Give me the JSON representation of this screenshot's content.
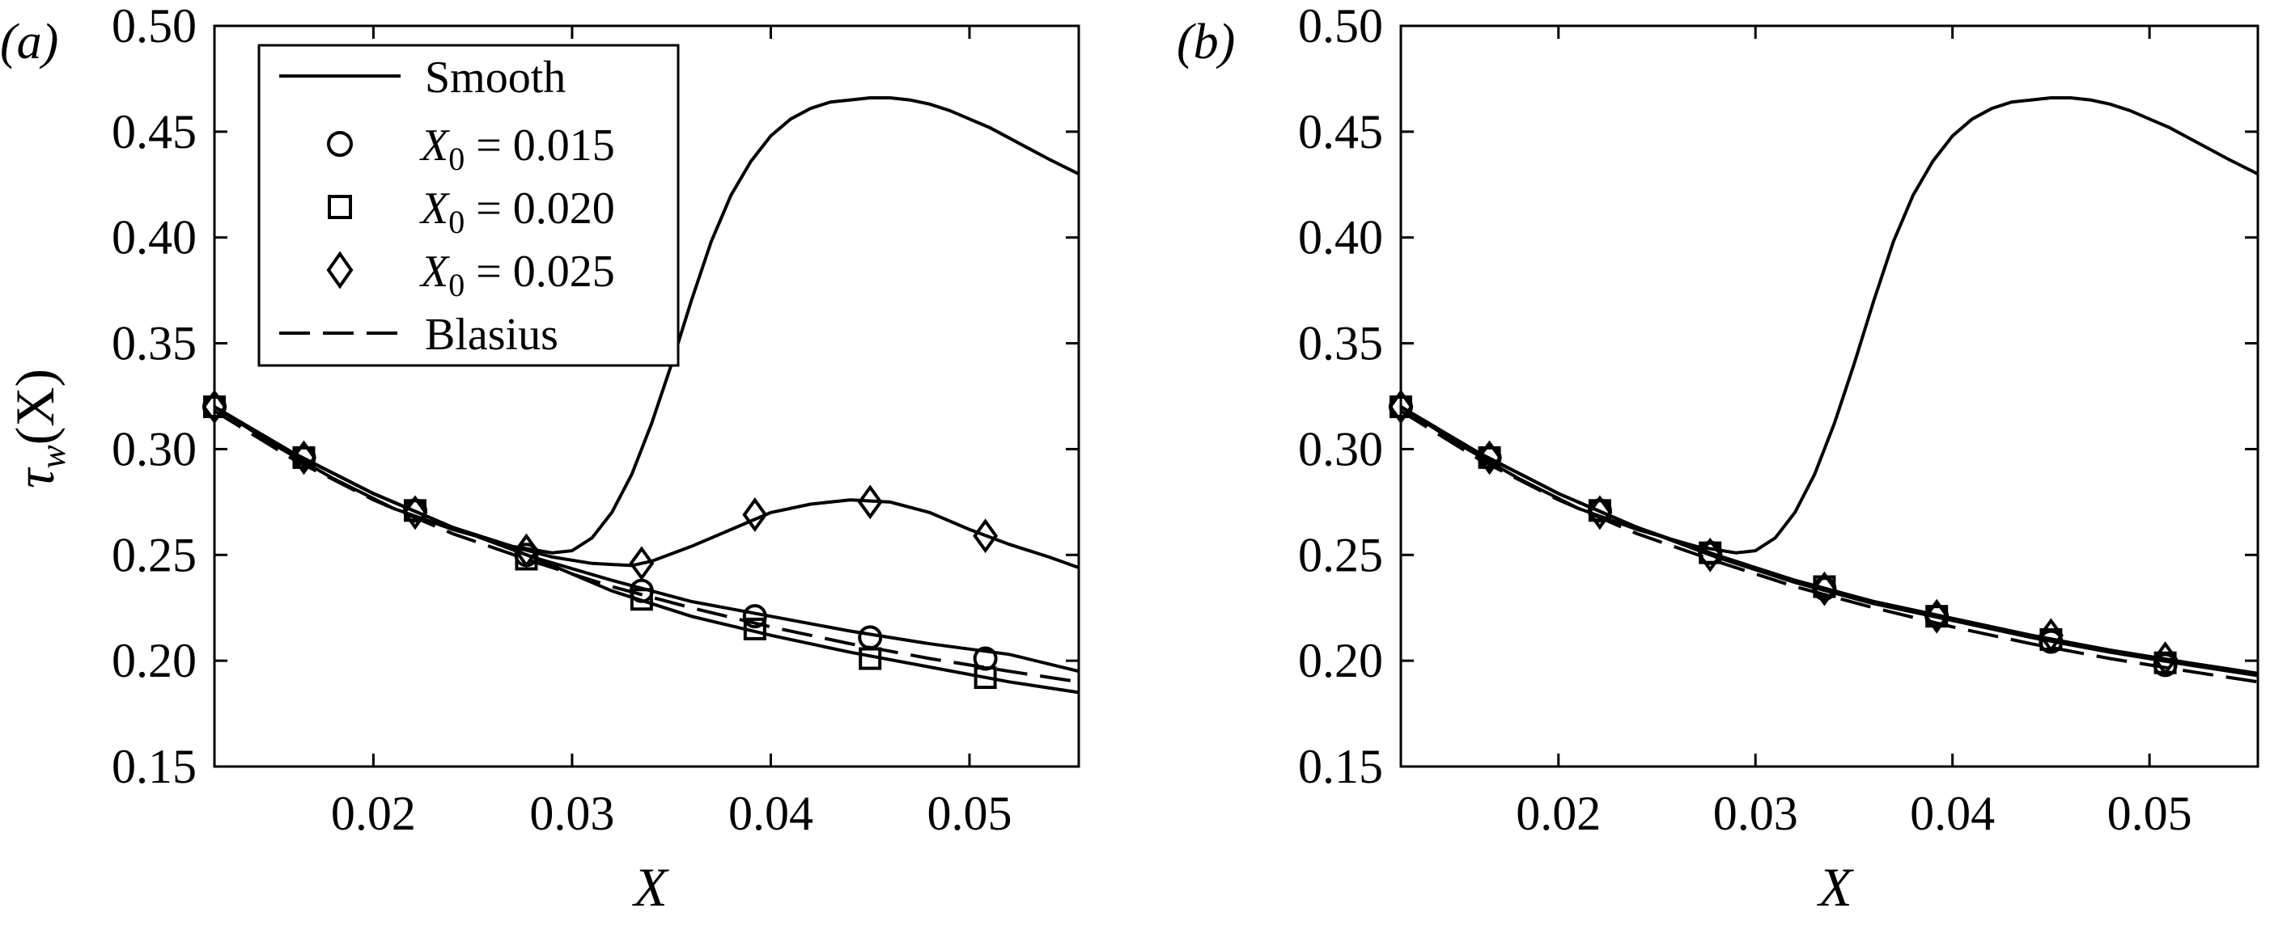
{
  "chart_data": [
    {
      "type": "line",
      "panel_label": "(a)",
      "xlabel": "X",
      "ylabel": "τ_w(X)",
      "ylabel_parts": {
        "main": "τ",
        "sub": "w",
        "arg": "(X)"
      },
      "xlim": [
        0.012,
        0.0555
      ],
      "ylim": [
        0.15,
        0.5
      ],
      "xticks": [
        0.02,
        0.03,
        0.04,
        0.05
      ],
      "xtick_labels": [
        "0.02",
        "0.03",
        "0.04",
        "0.05"
      ],
      "yticks": [
        0.15,
        0.2,
        0.25,
        0.3,
        0.35,
        0.4,
        0.45,
        0.5
      ],
      "ytick_labels": [
        "0.15",
        "0.20",
        "0.25",
        "0.30",
        "0.35",
        "0.40",
        "0.45",
        "0.50"
      ],
      "grid": false,
      "legend_position": "top-left",
      "legend": [
        {
          "label": "Smooth",
          "style": "solid"
        },
        {
          "label": "X",
          "sub": "0",
          "value": " = 0.015",
          "marker": "circle"
        },
        {
          "label": "X",
          "sub": "0",
          "value": " = 0.020",
          "marker": "square"
        },
        {
          "label": "X",
          "sub": "0",
          "value": " = 0.025",
          "marker": "diamond"
        },
        {
          "label": "Blasius",
          "style": "dashed"
        }
      ],
      "series": [
        {
          "name": "Smooth",
          "style": "solid",
          "x": [
            0.012,
            0.015,
            0.018,
            0.021,
            0.024,
            0.027,
            0.029,
            0.03,
            0.031,
            0.032,
            0.033,
            0.034,
            0.035,
            0.036,
            0.037,
            0.038,
            0.039,
            0.04,
            0.041,
            0.042,
            0.043,
            0.044,
            0.045,
            0.046,
            0.047,
            0.048,
            0.049,
            0.05,
            0.051,
            0.052,
            0.053,
            0.054,
            0.0555
          ],
          "y": [
            0.32,
            0.302,
            0.286,
            0.272,
            0.262,
            0.254,
            0.251,
            0.252,
            0.258,
            0.27,
            0.288,
            0.312,
            0.34,
            0.37,
            0.398,
            0.42,
            0.436,
            0.448,
            0.456,
            0.461,
            0.464,
            0.465,
            0.466,
            0.466,
            0.465,
            0.463,
            0.46,
            0.456,
            0.452,
            0.447,
            0.442,
            0.437,
            0.43
          ]
        },
        {
          "name": "X0 = 0.015",
          "style": "solid",
          "marker": "circle",
          "x": [
            0.012,
            0.016,
            0.02,
            0.024,
            0.028,
            0.032,
            0.036,
            0.04,
            0.044,
            0.048,
            0.052,
            0.0555
          ],
          "y": [
            0.32,
            0.298,
            0.279,
            0.263,
            0.249,
            0.238,
            0.228,
            0.221,
            0.214,
            0.208,
            0.203,
            0.195
          ]
        },
        {
          "name": "X0 = 0.020",
          "style": "solid",
          "marker": "square",
          "x": [
            0.012,
            0.016,
            0.02,
            0.024,
            0.028,
            0.032,
            0.036,
            0.04,
            0.044,
            0.048,
            0.052,
            0.0555
          ],
          "y": [
            0.32,
            0.298,
            0.279,
            0.263,
            0.249,
            0.233,
            0.221,
            0.212,
            0.204,
            0.197,
            0.19,
            0.185
          ]
        },
        {
          "name": "X0 = 0.025",
          "style": "solid",
          "marker": "diamond",
          "x": [
            0.012,
            0.016,
            0.02,
            0.024,
            0.027,
            0.029,
            0.031,
            0.033,
            0.034,
            0.036,
            0.038,
            0.04,
            0.042,
            0.044,
            0.046,
            0.048,
            0.05,
            0.052,
            0.054,
            0.0555
          ],
          "y": [
            0.32,
            0.298,
            0.279,
            0.263,
            0.254,
            0.249,
            0.246,
            0.245,
            0.247,
            0.254,
            0.262,
            0.27,
            0.274,
            0.276,
            0.275,
            0.27,
            0.262,
            0.255,
            0.249,
            0.244
          ]
        },
        {
          "name": "Blasius",
          "style": "dashed",
          "x": [
            0.012,
            0.016,
            0.02,
            0.024,
            0.028,
            0.032,
            0.036,
            0.04,
            0.044,
            0.048,
            0.052,
            0.0555
          ],
          "y": [
            0.318,
            0.295,
            0.276,
            0.26,
            0.247,
            0.235,
            0.225,
            0.216,
            0.208,
            0.201,
            0.195,
            0.19
          ]
        }
      ],
      "markers": [
        {
          "series": "X0 = 0.015",
          "shape": "circle",
          "x": [
            0.012,
            0.0165,
            0.0221,
            0.0277,
            0.0335,
            0.0392,
            0.045,
            0.0508
          ],
          "y": [
            0.32,
            0.296,
            0.271,
            0.25,
            0.233,
            0.221,
            0.211,
            0.201
          ]
        },
        {
          "series": "X0 = 0.020",
          "shape": "square",
          "x": [
            0.012,
            0.0165,
            0.0221,
            0.0277,
            0.0335,
            0.0392,
            0.045,
            0.0508
          ],
          "y": [
            0.32,
            0.296,
            0.271,
            0.248,
            0.229,
            0.215,
            0.201,
            0.192
          ]
        },
        {
          "series": "X0 = 0.025",
          "shape": "diamond",
          "x": [
            0.012,
            0.0165,
            0.0221,
            0.0277,
            0.0335,
            0.0392,
            0.045,
            0.0508
          ],
          "y": [
            0.32,
            0.296,
            0.27,
            0.252,
            0.246,
            0.269,
            0.275,
            0.259
          ]
        }
      ]
    },
    {
      "type": "line",
      "panel_label": "(b)",
      "xlabel": "X",
      "xlim": [
        0.012,
        0.0555
      ],
      "ylim": [
        0.15,
        0.5
      ],
      "xticks": [
        0.02,
        0.03,
        0.04,
        0.05
      ],
      "xtick_labels": [
        "0.02",
        "0.03",
        "0.04",
        "0.05"
      ],
      "yticks": [
        0.15,
        0.2,
        0.25,
        0.3,
        0.35,
        0.4,
        0.45,
        0.5
      ],
      "ytick_labels": [
        "0.15",
        "0.20",
        "0.25",
        "0.30",
        "0.35",
        "0.40",
        "0.45",
        "0.50"
      ],
      "grid": false,
      "series": [
        {
          "name": "Smooth",
          "style": "solid",
          "x": [
            0.012,
            0.015,
            0.018,
            0.021,
            0.024,
            0.027,
            0.029,
            0.03,
            0.031,
            0.032,
            0.033,
            0.034,
            0.035,
            0.036,
            0.037,
            0.038,
            0.039,
            0.04,
            0.041,
            0.042,
            0.043,
            0.044,
            0.045,
            0.046,
            0.047,
            0.048,
            0.049,
            0.05,
            0.051,
            0.052,
            0.053,
            0.054,
            0.0555
          ],
          "y": [
            0.32,
            0.302,
            0.286,
            0.272,
            0.262,
            0.254,
            0.251,
            0.252,
            0.258,
            0.27,
            0.288,
            0.312,
            0.34,
            0.37,
            0.398,
            0.42,
            0.436,
            0.448,
            0.456,
            0.461,
            0.464,
            0.465,
            0.466,
            0.466,
            0.465,
            0.463,
            0.46,
            0.456,
            0.452,
            0.447,
            0.442,
            0.437,
            0.43
          ]
        },
        {
          "name": "X0 = 0.015",
          "style": "solid",
          "marker": "circle",
          "x": [
            0.012,
            0.016,
            0.02,
            0.024,
            0.028,
            0.032,
            0.036,
            0.04,
            0.044,
            0.048,
            0.052,
            0.0555
          ],
          "y": [
            0.32,
            0.298,
            0.279,
            0.263,
            0.249,
            0.237,
            0.227,
            0.219,
            0.211,
            0.204,
            0.198,
            0.193
          ]
        },
        {
          "name": "X0 = 0.020",
          "style": "solid",
          "marker": "square",
          "x": [
            0.012,
            0.016,
            0.02,
            0.024,
            0.028,
            0.032,
            0.036,
            0.04,
            0.044,
            0.048,
            0.052,
            0.0555
          ],
          "y": [
            0.32,
            0.298,
            0.279,
            0.263,
            0.249,
            0.238,
            0.228,
            0.22,
            0.212,
            0.205,
            0.199,
            0.194
          ]
        },
        {
          "name": "X0 = 0.025",
          "style": "solid",
          "marker": "diamond",
          "x": [
            0.012,
            0.016,
            0.02,
            0.024,
            0.028,
            0.032,
            0.036,
            0.04,
            0.044,
            0.048,
            0.052,
            0.0555
          ],
          "y": [
            0.32,
            0.298,
            0.279,
            0.263,
            0.25,
            0.238,
            0.228,
            0.22,
            0.212,
            0.205,
            0.199,
            0.194
          ]
        },
        {
          "name": "Blasius",
          "style": "dashed",
          "x": [
            0.012,
            0.016,
            0.02,
            0.024,
            0.028,
            0.032,
            0.036,
            0.04,
            0.044,
            0.048,
            0.052,
            0.0555
          ],
          "y": [
            0.318,
            0.295,
            0.276,
            0.26,
            0.247,
            0.235,
            0.225,
            0.216,
            0.208,
            0.201,
            0.195,
            0.19
          ]
        }
      ],
      "markers": [
        {
          "series": "X0 = 0.015",
          "shape": "circle",
          "x": [
            0.012,
            0.0165,
            0.0221,
            0.0277,
            0.0335,
            0.0392,
            0.045,
            0.0508
          ],
          "y": [
            0.32,
            0.296,
            0.271,
            0.251,
            0.234,
            0.221,
            0.209,
            0.198
          ]
        },
        {
          "series": "X0 = 0.020",
          "shape": "square",
          "x": [
            0.012,
            0.0165,
            0.0221,
            0.0277,
            0.0335,
            0.0392,
            0.045,
            0.0508
          ],
          "y": [
            0.32,
            0.296,
            0.271,
            0.251,
            0.235,
            0.221,
            0.21,
            0.199
          ]
        },
        {
          "series": "X0 = 0.025",
          "shape": "diamond",
          "x": [
            0.012,
            0.0165,
            0.0221,
            0.0277,
            0.0335,
            0.0392,
            0.045,
            0.0508
          ],
          "y": [
            0.32,
            0.296,
            0.27,
            0.25,
            0.234,
            0.221,
            0.212,
            0.201
          ]
        }
      ]
    }
  ]
}
